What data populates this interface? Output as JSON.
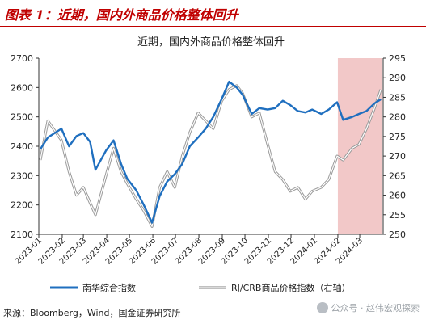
{
  "header": {
    "title": "图表 1：近期，国内外商品价格整体回升"
  },
  "source": "来源：Bloomberg，Wind，国金证券研究所",
  "watermark": "公众号 · 赵伟宏观探索",
  "colors": {
    "accent": "#c00000",
    "nanhua": "#1f6fbf",
    "crb_outer": "#9a9a9a",
    "shade": "#f2c8c8"
  },
  "chart_data": {
    "type": "line",
    "title": "近期，国内外商品价格整体回升",
    "x_ticks": [
      "2023-01",
      "2023-02",
      "2023-03",
      "2023-04",
      "2023-05",
      "2023-06",
      "2023-07",
      "2023-08",
      "2023-09",
      "2023-10",
      "2023-11",
      "2023-12",
      "2024-01",
      "2024-02",
      "2024-03"
    ],
    "ylim_left": [
      2100,
      2700
    ],
    "yticks_left": [
      2100,
      2200,
      2300,
      2400,
      2500,
      2600,
      2700
    ],
    "ylim_right": [
      250,
      295
    ],
    "yticks_right": [
      250,
      255,
      260,
      265,
      270,
      275,
      280,
      285,
      290,
      295
    ],
    "shaded_region": {
      "from": "2024-02-01",
      "to": "2024-03-31"
    },
    "legend_placement": "bottom",
    "series": [
      {
        "name": "南华综合指数",
        "axis": "left",
        "points": [
          [
            "2023-01-03",
            2390
          ],
          [
            "2023-01-13",
            2430
          ],
          [
            "2023-01-31",
            2460
          ],
          [
            "2023-02-10",
            2400
          ],
          [
            "2023-02-20",
            2435
          ],
          [
            "2023-03-01",
            2445
          ],
          [
            "2023-03-10",
            2415
          ],
          [
            "2023-03-17",
            2320
          ],
          [
            "2023-03-31",
            2385
          ],
          [
            "2023-04-10",
            2420
          ],
          [
            "2023-04-20",
            2340
          ],
          [
            "2023-04-28",
            2290
          ],
          [
            "2023-05-10",
            2250
          ],
          [
            "2023-05-20",
            2200
          ],
          [
            "2023-05-31",
            2140
          ],
          [
            "2023-06-10",
            2230
          ],
          [
            "2023-06-20",
            2280
          ],
          [
            "2023-06-30",
            2305
          ],
          [
            "2023-07-10",
            2340
          ],
          [
            "2023-07-20",
            2400
          ],
          [
            "2023-07-31",
            2430
          ],
          [
            "2023-08-10",
            2460
          ],
          [
            "2023-08-20",
            2500
          ],
          [
            "2023-08-31",
            2560
          ],
          [
            "2023-09-10",
            2620
          ],
          [
            "2023-09-20",
            2600
          ],
          [
            "2023-09-28",
            2575
          ],
          [
            "2023-10-10",
            2510
          ],
          [
            "2023-10-20",
            2530
          ],
          [
            "2023-10-31",
            2525
          ],
          [
            "2023-11-10",
            2530
          ],
          [
            "2023-11-20",
            2555
          ],
          [
            "2023-11-30",
            2540
          ],
          [
            "2023-12-10",
            2520
          ],
          [
            "2023-12-20",
            2515
          ],
          [
            "2023-12-29",
            2525
          ],
          [
            "2024-01-10",
            2510
          ],
          [
            "2024-01-20",
            2525
          ],
          [
            "2024-01-31",
            2550
          ],
          [
            "2024-02-08",
            2490
          ],
          [
            "2024-02-20",
            2500
          ],
          [
            "2024-02-29",
            2510
          ],
          [
            "2024-03-10",
            2520
          ],
          [
            "2024-03-20",
            2545
          ],
          [
            "2024-03-29",
            2560
          ]
        ]
      },
      {
        "name": "RJ/CRB商品价格指数（右轴）",
        "axis": "right",
        "points": [
          [
            "2023-01-03",
            269
          ],
          [
            "2023-01-13",
            279
          ],
          [
            "2023-01-31",
            274
          ],
          [
            "2023-02-10",
            266
          ],
          [
            "2023-02-20",
            260
          ],
          [
            "2023-03-01",
            262
          ],
          [
            "2023-03-10",
            258
          ],
          [
            "2023-03-17",
            255
          ],
          [
            "2023-03-31",
            265
          ],
          [
            "2023-04-10",
            272
          ],
          [
            "2023-04-20",
            266
          ],
          [
            "2023-04-28",
            263
          ],
          [
            "2023-05-10",
            259
          ],
          [
            "2023-05-20",
            256
          ],
          [
            "2023-05-31",
            252
          ],
          [
            "2023-06-10",
            262
          ],
          [
            "2023-06-20",
            266
          ],
          [
            "2023-06-30",
            262
          ],
          [
            "2023-07-10",
            270
          ],
          [
            "2023-07-20",
            276
          ],
          [
            "2023-07-31",
            281
          ],
          [
            "2023-08-10",
            279
          ],
          [
            "2023-08-20",
            277
          ],
          [
            "2023-08-31",
            284
          ],
          [
            "2023-09-10",
            287
          ],
          [
            "2023-09-20",
            288
          ],
          [
            "2023-09-28",
            286
          ],
          [
            "2023-10-10",
            280
          ],
          [
            "2023-10-20",
            281
          ],
          [
            "2023-10-31",
            273
          ],
          [
            "2023-11-10",
            266
          ],
          [
            "2023-11-20",
            264
          ],
          [
            "2023-11-30",
            261
          ],
          [
            "2023-12-10",
            262
          ],
          [
            "2023-12-20",
            259
          ],
          [
            "2023-12-29",
            261
          ],
          [
            "2024-01-10",
            262
          ],
          [
            "2024-01-20",
            264
          ],
          [
            "2024-01-31",
            270
          ],
          [
            "2024-02-08",
            269
          ],
          [
            "2024-02-20",
            272
          ],
          [
            "2024-02-29",
            273
          ],
          [
            "2024-03-10",
            277
          ],
          [
            "2024-03-20",
            282
          ],
          [
            "2024-03-29",
            287
          ]
        ]
      }
    ]
  }
}
